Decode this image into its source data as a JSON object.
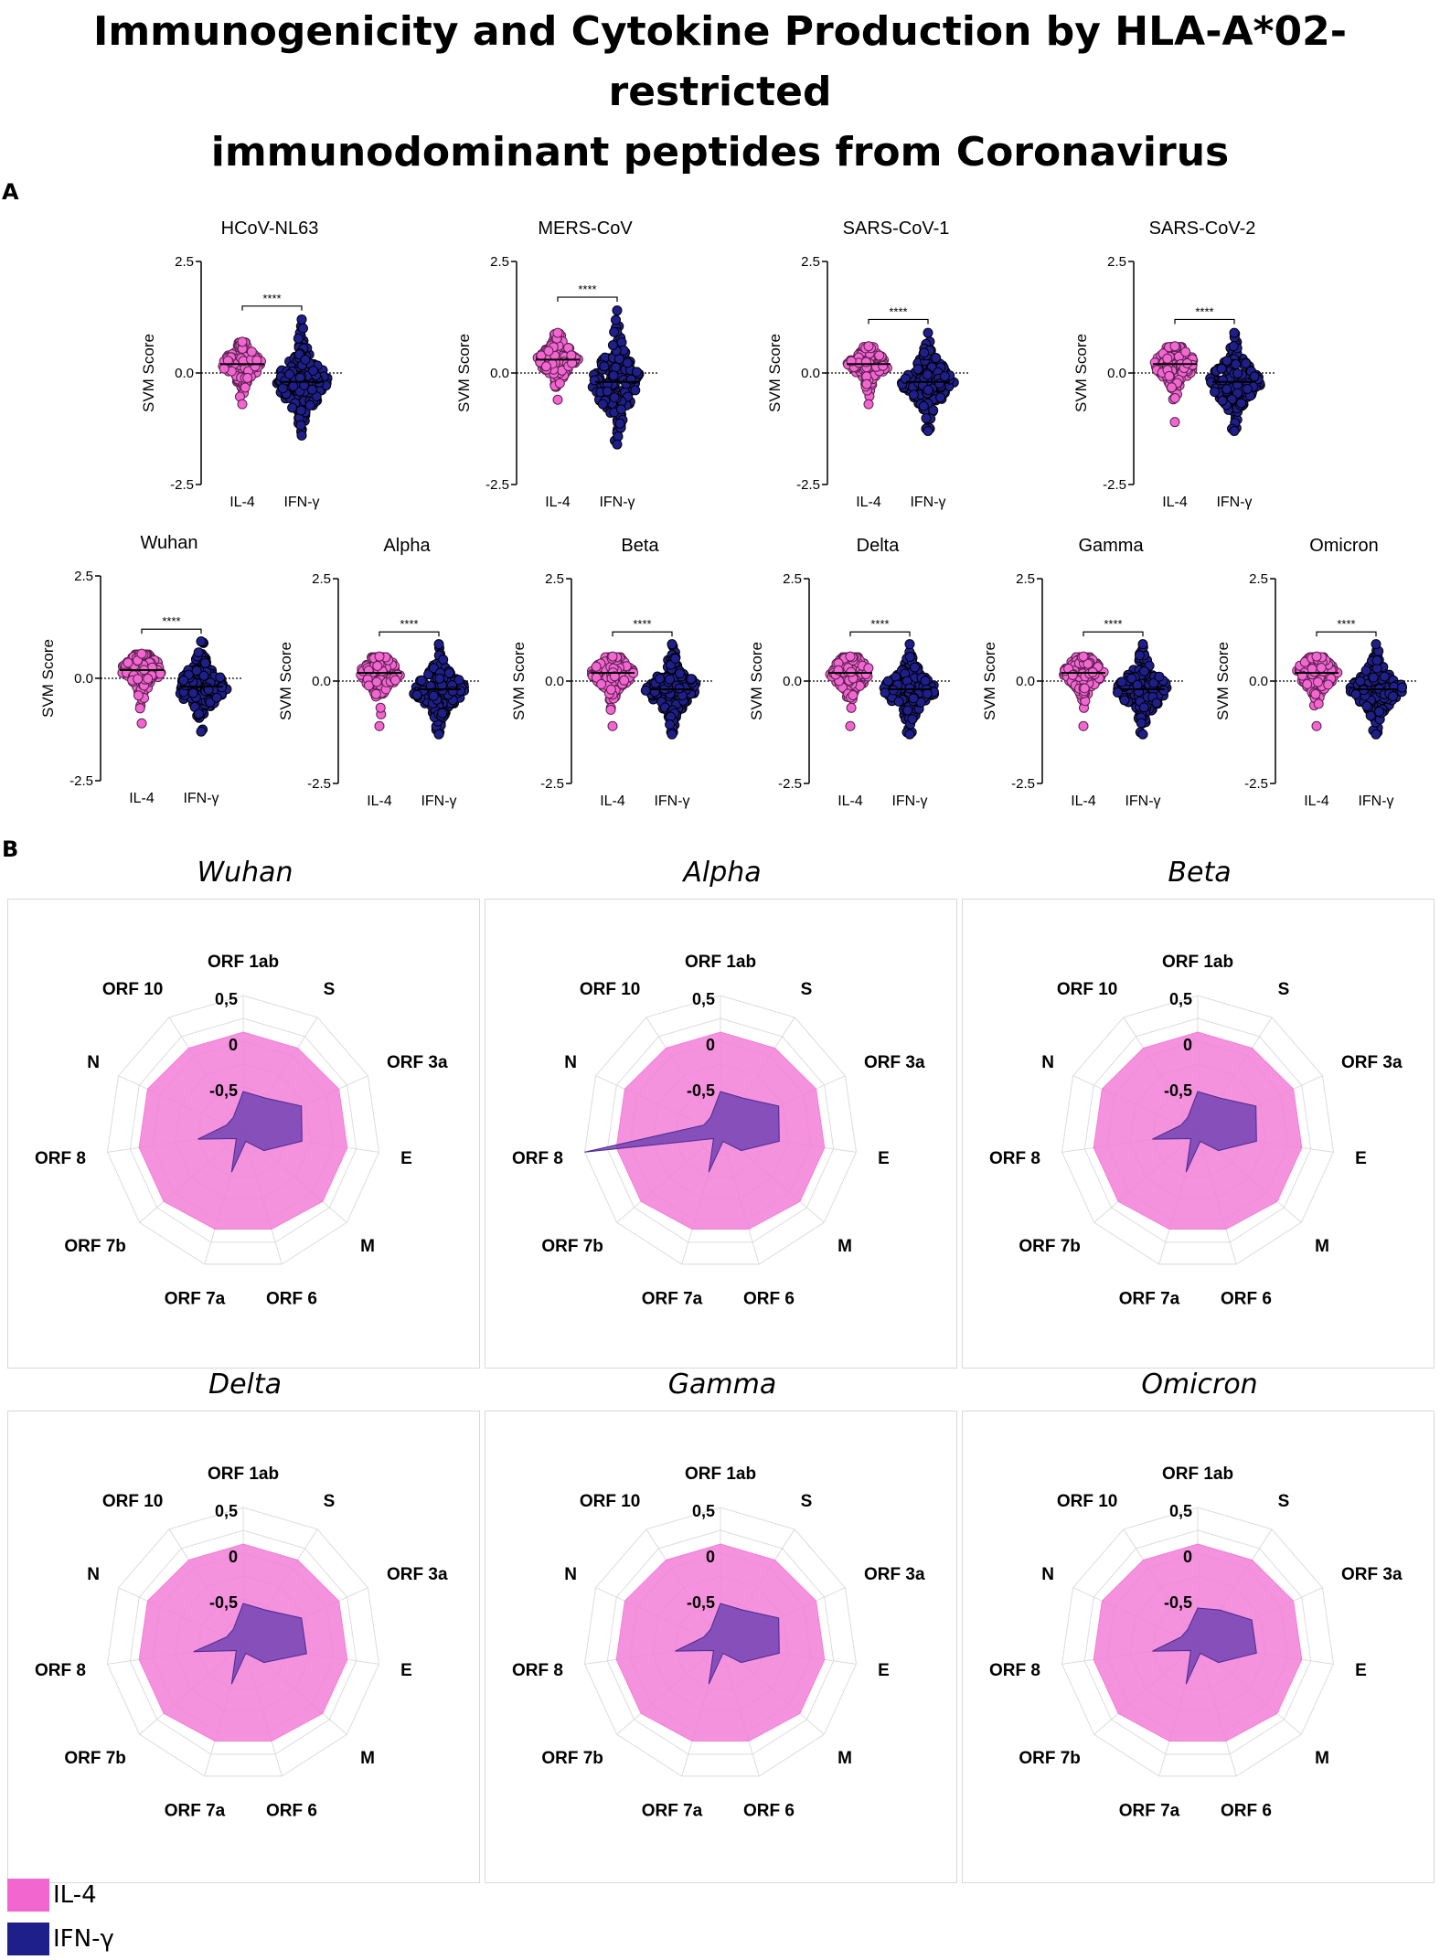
{
  "figure": {
    "title_line1": "Immunogenicity and Cytokine Production by HLA-A*02-restricted",
    "title_line2": "immunodominant peptides from  Coronavirus",
    "panel_a_label": "A",
    "panel_b_label": "B"
  },
  "colors": {
    "il4": "#f266d0",
    "ifn": "#1f1f8c",
    "il4_fill": "#f27fd8",
    "ifn_fill": "#6a3fb0"
  },
  "legend": {
    "il4": "IL-4",
    "ifn": "IFN-γ"
  },
  "chart_data": [
    {
      "type": "scatter",
      "subtype": "violin-dot-plot",
      "panel": "A",
      "ylabel": "SVM Score",
      "yticks": [
        "2.5",
        "0.0",
        "-2.5"
      ],
      "ylim": [
        -2.5,
        2.5
      ],
      "categories": [
        "IL-4",
        "IFN-γ"
      ],
      "significance": "****",
      "plots": [
        {
          "title": "HCoV-NL63",
          "il4": {
            "min": -0.7,
            "max": 0.7,
            "median": 0.2
          },
          "ifn": {
            "min": -1.4,
            "max": 1.2,
            "median": -0.2
          }
        },
        {
          "title": "MERS-CoV",
          "il4": {
            "min": -0.6,
            "max": 0.9,
            "median": 0.3
          },
          "ifn": {
            "min": -1.6,
            "max": 1.4,
            "median": -0.2
          }
        },
        {
          "title": "SARS-CoV-1",
          "il4": {
            "min": -0.7,
            "max": 0.6,
            "median": 0.2
          },
          "ifn": {
            "min": -1.3,
            "max": 0.9,
            "median": -0.2
          }
        },
        {
          "title": "SARS-CoV-2",
          "il4": {
            "min": -1.1,
            "max": 0.6,
            "median": 0.2
          },
          "ifn": {
            "min": -1.3,
            "max": 0.9,
            "median": -0.2
          }
        },
        {
          "title": "Wuhan",
          "il4": {
            "min": -1.1,
            "max": 0.6,
            "median": 0.2
          },
          "ifn": {
            "min": -1.3,
            "max": 0.9,
            "median": -0.2
          }
        },
        {
          "title": "Alpha",
          "il4": {
            "min": -1.1,
            "max": 0.6,
            "median": 0.2
          },
          "ifn": {
            "min": -1.3,
            "max": 0.9,
            "median": -0.2
          }
        },
        {
          "title": "Beta",
          "il4": {
            "min": -1.1,
            "max": 0.6,
            "median": 0.2
          },
          "ifn": {
            "min": -1.3,
            "max": 0.9,
            "median": -0.2
          }
        },
        {
          "title": "Delta",
          "il4": {
            "min": -1.1,
            "max": 0.6,
            "median": 0.2
          },
          "ifn": {
            "min": -1.3,
            "max": 0.9,
            "median": -0.2
          }
        },
        {
          "title": "Gamma",
          "il4": {
            "min": -1.1,
            "max": 0.6,
            "median": 0.2
          },
          "ifn": {
            "min": -1.3,
            "max": 0.9,
            "median": -0.2
          }
        },
        {
          "title": "Omicron",
          "il4": {
            "min": -1.1,
            "max": 0.6,
            "median": 0.2
          },
          "ifn": {
            "min": -1.3,
            "max": 0.9,
            "median": -0.2
          }
        }
      ]
    },
    {
      "type": "radar",
      "panel": "B",
      "axes": [
        "ORF 1ab",
        "S",
        "ORF 3a",
        "E",
        "M",
        "ORF 6",
        "ORF 7a",
        "ORF 7b",
        "ORF 8",
        "N",
        "ORF 10"
      ],
      "rlim": [
        -1,
        0.5
      ],
      "tick_labels": [
        "0,5",
        "0",
        "-0,5"
      ],
      "series_names": [
        "IL-4",
        "IFN-γ"
      ],
      "plots": [
        {
          "title": "Wuhan",
          "il4": [
            0.1,
            0.1,
            0.15,
            0.15,
            0.15,
            0.1,
            0.1,
            0.15,
            0.15,
            0.15,
            0.1
          ],
          "ifn": [
            -0.55,
            -0.55,
            -0.3,
            -0.35,
            -0.7,
            -0.9,
            -0.55,
            -0.9,
            -0.5,
            -0.8,
            -0.8
          ]
        },
        {
          "title": "Alpha",
          "il4": [
            0.1,
            0.1,
            0.15,
            0.15,
            0.15,
            0.1,
            0.1,
            0.15,
            0.15,
            0.15,
            0.1
          ],
          "ifn": [
            -0.55,
            -0.55,
            -0.3,
            -0.35,
            -0.7,
            -0.9,
            -0.55,
            -0.9,
            0.5,
            -0.8,
            -0.8
          ]
        },
        {
          "title": "Beta",
          "il4": [
            0.1,
            0.1,
            0.15,
            0.15,
            0.15,
            0.1,
            0.1,
            0.15,
            0.15,
            0.15,
            0.1
          ],
          "ifn": [
            -0.55,
            -0.55,
            -0.3,
            -0.35,
            -0.7,
            -0.9,
            -0.55,
            -0.9,
            -0.5,
            -0.8,
            -0.8
          ]
        },
        {
          "title": "Delta",
          "il4": [
            0.1,
            0.1,
            0.15,
            0.15,
            0.15,
            0.1,
            0.1,
            0.15,
            0.15,
            0.15,
            0.1
          ],
          "ifn": [
            -0.55,
            -0.55,
            -0.3,
            -0.3,
            -0.7,
            -0.9,
            -0.55,
            -0.9,
            -0.45,
            -0.8,
            -0.8
          ]
        },
        {
          "title": "Gamma",
          "il4": [
            0.1,
            0.1,
            0.15,
            0.15,
            0.15,
            0.1,
            0.1,
            0.15,
            0.15,
            0.15,
            0.1
          ],
          "ifn": [
            -0.55,
            -0.55,
            -0.3,
            -0.35,
            -0.7,
            -0.9,
            -0.55,
            -0.9,
            -0.5,
            -0.8,
            -0.8
          ]
        },
        {
          "title": "Omicron",
          "il4": [
            0.1,
            0.1,
            0.15,
            0.15,
            0.15,
            0.1,
            0.1,
            0.15,
            0.15,
            0.15,
            0.1
          ],
          "ifn": [
            -0.6,
            -0.55,
            -0.35,
            -0.35,
            -0.7,
            -0.9,
            -0.55,
            -0.9,
            -0.5,
            -0.8,
            -0.8
          ]
        }
      ]
    }
  ]
}
